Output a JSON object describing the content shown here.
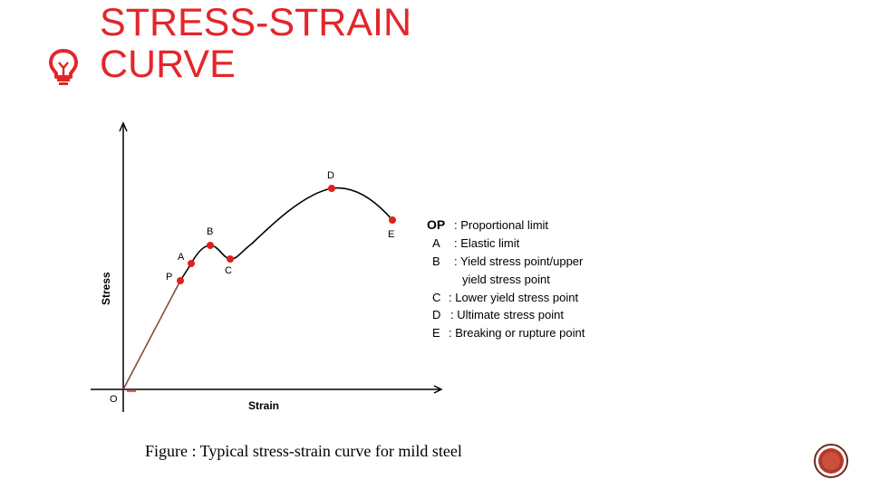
{
  "title": [
    "STRESS-STRAIN",
    "CURVE"
  ],
  "axes": {
    "x_label": "Strain",
    "y_label": "Stress",
    "origin_label": "O"
  },
  "points": [
    {
      "id": "P",
      "label": "P"
    },
    {
      "id": "A",
      "label": "A"
    },
    {
      "id": "B",
      "label": "B"
    },
    {
      "id": "C",
      "label": "C"
    },
    {
      "id": "D",
      "label": "D"
    },
    {
      "id": "E",
      "label": "E"
    }
  ],
  "legend": [
    {
      "key": "OP",
      "desc": ": Proportional limit"
    },
    {
      "key": "A",
      "desc": ": Elastic limit"
    },
    {
      "key": "B",
      "desc": ": Yield stress point/upper"
    },
    {
      "key": "",
      "desc": "yield stress point"
    },
    {
      "key": "C",
      "desc": ": Lower yield stress point"
    },
    {
      "key": "D",
      "desc": ": Ultimate stress point"
    },
    {
      "key": "E",
      "desc": ": Breaking or rupture point"
    }
  ],
  "caption": "Figure : Typical stress-strain curve for mild steel",
  "colors": {
    "accent": "#e3262b",
    "curve": "#000000",
    "linear_segment": "#8a4a3a",
    "point": "#e02020"
  },
  "icons": [
    "lightbulb-icon",
    "page-badge-icon"
  ]
}
